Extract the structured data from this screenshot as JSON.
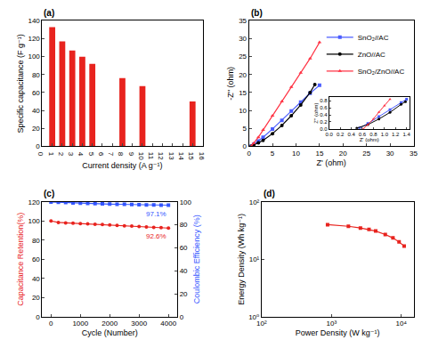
{
  "chart_data": [
    {
      "type": "bar",
      "title": "(a)",
      "x_label": "Current density (A g⁻¹)",
      "y_label": "Specific capacitance (F g⁻¹)",
      "x": [
        1,
        2,
        3,
        4,
        5,
        8,
        10,
        15
      ],
      "values": [
        133,
        117,
        107,
        100,
        92,
        76,
        67,
        50
      ],
      "color": "#e8231e",
      "xlim": [
        0,
        16
      ],
      "xticks": [
        0,
        1,
        2,
        3,
        4,
        5,
        6,
        7,
        8,
        9,
        10,
        11,
        12,
        13,
        14,
        15,
        16
      ],
      "ylim": [
        0,
        140
      ],
      "yticks": [
        0,
        20,
        40,
        60,
        80,
        100,
        120,
        140
      ]
    },
    {
      "type": "line",
      "title": "(b)",
      "x_label": "Z' (ohm)",
      "y_label": "-Z'' (ohm)",
      "xlim": [
        0,
        35
      ],
      "xticks": [
        0,
        5,
        10,
        15,
        20,
        25,
        30,
        35
      ],
      "ylim": [
        0,
        35
      ],
      "yticks": [
        0,
        5,
        10,
        15,
        20,
        25,
        30,
        35
      ],
      "legend": "upper right",
      "series": [
        {
          "name": "SnO₂//AC",
          "color": "#4a5cff",
          "marker": "square",
          "x": [
            0.5,
            1,
            2,
            3,
            5,
            7,
            9,
            11,
            13,
            15
          ],
          "values": [
            0,
            0.5,
            1.4,
            2.5,
            4.8,
            7.2,
            9.8,
            12.3,
            14.8,
            17
          ]
        },
        {
          "name": "ZnO//AC",
          "color": "#000000",
          "marker": "circle",
          "x": [
            0.5,
            1,
            2,
            3,
            5,
            7,
            9,
            11,
            13,
            14
          ],
          "values": [
            0,
            0.3,
            0.9,
            1.6,
            3.5,
            5.8,
            8.5,
            11.5,
            15,
            17.2
          ]
        },
        {
          "name": "SnO₂/ZnO//AC",
          "color": "#ff3344",
          "marker": "triangle",
          "x": [
            0.5,
            1,
            2,
            3,
            5,
            7,
            9,
            11,
            13,
            15
          ],
          "values": [
            0,
            0.8,
            2.5,
            4.5,
            8.5,
            12.5,
            16.5,
            20.5,
            24.5,
            29
          ]
        }
      ]
    },
    {
      "type": "line",
      "x_label": "Z' (ohm)",
      "y_label": "Z'' (ohm)",
      "xlim": [
        0,
        1.45
      ],
      "xticks": [
        {
          "value": 0,
          "label": "0.0"
        },
        0.2,
        0.4,
        0.6,
        0.8,
        {
          "value": 1,
          "label": "1.0"
        },
        1.2,
        1.4
      ],
      "ylim": [
        0,
        0.9
      ],
      "yticks": [
        {
          "value": 0,
          "label": "0.0"
        },
        0.2,
        0.4,
        0.6,
        0.8
      ],
      "series": [
        {
          "color": "#4a5cff",
          "marker": "square",
          "x": [
            0.55,
            0.7,
            0.9,
            1.1,
            1.3,
            1.4
          ],
          "values": [
            0.02,
            0.15,
            0.35,
            0.55,
            0.75,
            0.85
          ]
        },
        {
          "color": "#000000",
          "marker": "circle",
          "x": [
            0.5,
            0.7,
            0.9,
            1.1,
            1.3,
            1.38
          ],
          "values": [
            0.02,
            0.12,
            0.28,
            0.47,
            0.7,
            0.78
          ]
        },
        {
          "color": "#ff3344",
          "marker": "triangle",
          "x": [
            0.62,
            0.7,
            0.8,
            0.9,
            1.0,
            1.1
          ],
          "values": [
            0,
            0.12,
            0.28,
            0.48,
            0.66,
            0.85
          ]
        }
      ]
    },
    {
      "type": "line",
      "title": "(c)",
      "x_label": "Cycle (Number)",
      "y_label": "Capacitance Retention(%)",
      "y2_label": "Coulombic Efficiency (%)",
      "x": [
        0,
        250,
        500,
        750,
        1000,
        1250,
        1500,
        1750,
        2000,
        2250,
        2500,
        2750,
        3000,
        3250,
        3500,
        3750,
        4000
      ],
      "xlim": [
        -300,
        4300
      ],
      "xticks": [
        0,
        1000,
        2000,
        3000,
        4000
      ],
      "ylim": [
        0,
        120
      ],
      "yticks": [
        0,
        20,
        40,
        60,
        80,
        100,
        120
      ],
      "y2lim": [
        0,
        100
      ],
      "y2ticks": [
        0,
        20,
        40,
        60,
        80,
        100
      ],
      "series": [
        {
          "color": "#e8231e",
          "marker": "circle",
          "values": [
            100,
            98.5,
            98,
            97.6,
            97.2,
            97,
            96.6,
            96.2,
            95.8,
            95.4,
            95,
            94.6,
            94.2,
            93.8,
            93.4,
            93,
            92.6
          ]
        },
        {
          "color": "#3355ff",
          "marker": "square",
          "axis": "y2",
          "values": [
            99.9,
            99.6,
            99.4,
            99.1,
            98.9,
            98.6,
            98.4,
            98.2,
            98,
            97.9,
            97.8,
            97.7,
            97.6,
            97.4,
            97.3,
            97.2,
            97.1
          ]
        }
      ],
      "annotations": [
        {
          "text": "97.1%",
          "x": 4000,
          "y": 97.1,
          "axis": "y2"
        },
        {
          "text": "92.6%",
          "x": 4000,
          "y": 92.6,
          "axis": "y"
        }
      ]
    },
    {
      "type": "line",
      "title": "(d)",
      "log": true,
      "x_label": "Power Density (W kg⁻¹)",
      "y_label": "Energy Density (Wh kg⁻¹)",
      "x": [
        880,
        1750,
        2600,
        3450,
        4300,
        5900,
        7600,
        9300,
        11000
      ],
      "values": [
        40,
        37.5,
        35,
        33,
        31,
        27,
        23.5,
        20,
        17
      ],
      "color": "#e8231e",
      "marker": "square",
      "xlim": [
        100,
        15000
      ],
      "xticks": [
        {
          "value": 100,
          "label": "10²"
        },
        {
          "value": 1000,
          "label": "10³"
        },
        {
          "value": 10000,
          "label": "10⁴"
        }
      ],
      "ylim": [
        1,
        100
      ],
      "yticks": [
        {
          "value": 1,
          "label": "10⁰"
        },
        {
          "value": 10,
          "label": "10¹"
        },
        {
          "value": 100,
          "label": "10²"
        }
      ]
    }
  ]
}
